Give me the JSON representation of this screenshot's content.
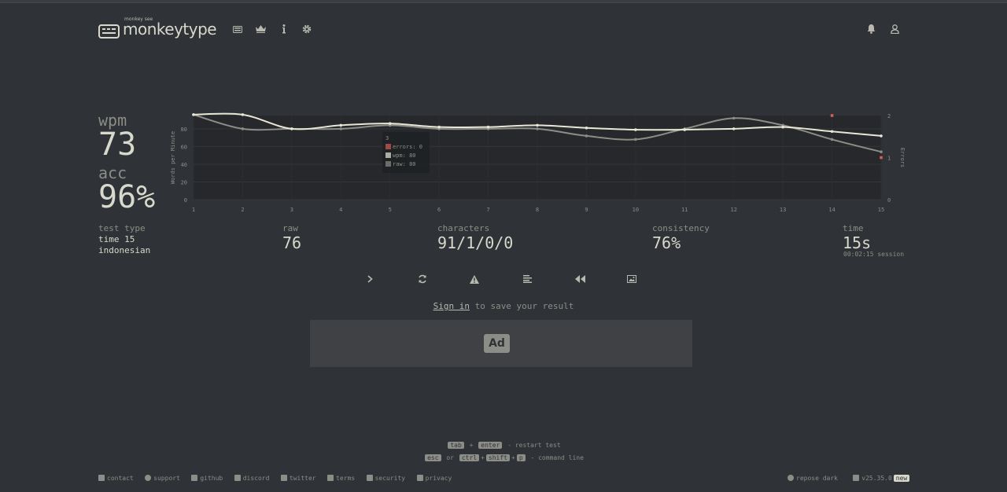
{
  "header": {
    "logo_small": "monkey see",
    "logo_big": "monkeytype",
    "nav": [
      "keyboard-icon",
      "crown-icon",
      "info-icon",
      "gear-icon"
    ],
    "right": [
      "bell-icon",
      "user-icon"
    ]
  },
  "result": {
    "wpm_label": "wpm",
    "wpm_value": "73",
    "acc_label": "acc",
    "acc_value": "96%"
  },
  "stats": {
    "test_type_label": "test type",
    "test_type_line1": "time 15",
    "test_type_line2": "indonesian",
    "raw_label": "raw",
    "raw_value": "76",
    "characters_label": "characters",
    "characters_value": "91/1/0/0",
    "consistency_label": "consistency",
    "consistency_value": "76%",
    "time_label": "time",
    "time_value": "15s",
    "session": "00:02:15 session"
  },
  "actions": [
    "next-test-icon",
    "restart-icon",
    "warning-icon",
    "words-history-icon",
    "replay-icon",
    "screenshot-icon"
  ],
  "signin": {
    "link": "Sign in",
    "text": " to save your result"
  },
  "ad": {
    "label": "Ad"
  },
  "shortcuts": {
    "line1": {
      "key1": "tab",
      "plus": "+",
      "key2": "enter",
      "desc": "- restart test"
    },
    "line2": {
      "key1": "esc",
      "or": "or",
      "key2": "ctrl",
      "plus1": "+",
      "key3": "shift",
      "plus2": "+",
      "key4": "p",
      "desc": "- command line"
    }
  },
  "footer": {
    "left": [
      "contact",
      "support",
      "github",
      "discord",
      "twitter",
      "terms",
      "security",
      "privacy"
    ],
    "theme": "repose dark",
    "version": "v25.35.0",
    "new_badge": "new"
  },
  "chart_data": {
    "type": "line",
    "ylabel": "Words per Minute",
    "y2label": "Errors",
    "x": [
      1,
      2,
      3,
      4,
      5,
      6,
      7,
      8,
      9,
      10,
      11,
      12,
      13,
      14,
      15
    ],
    "yticks": [
      0,
      20,
      40,
      60,
      80
    ],
    "y2ticks": [
      0,
      1,
      2
    ],
    "ylim": [
      0,
      95
    ],
    "y2lim": [
      0,
      2
    ],
    "series": [
      {
        "name": "wpm",
        "color": "#e8e6d4",
        "values": [
          96,
          96,
          80,
          84,
          86,
          82,
          82,
          84,
          81,
          79,
          79,
          80,
          82,
          77,
          72
        ]
      },
      {
        "name": "raw",
        "color": "#8d8d87",
        "values": [
          96,
          80,
          80,
          80,
          84,
          80,
          80,
          80,
          72,
          68,
          80,
          92,
          84,
          68,
          54
        ]
      },
      {
        "name": "errors",
        "color": "#d85a5a",
        "points": [
          [
            14,
            2
          ],
          [
            15,
            1
          ]
        ]
      }
    ],
    "tooltip": {
      "title": "3",
      "errors": "errors: 0",
      "wpm": "wpm: 80",
      "raw": "raw: 80"
    }
  }
}
